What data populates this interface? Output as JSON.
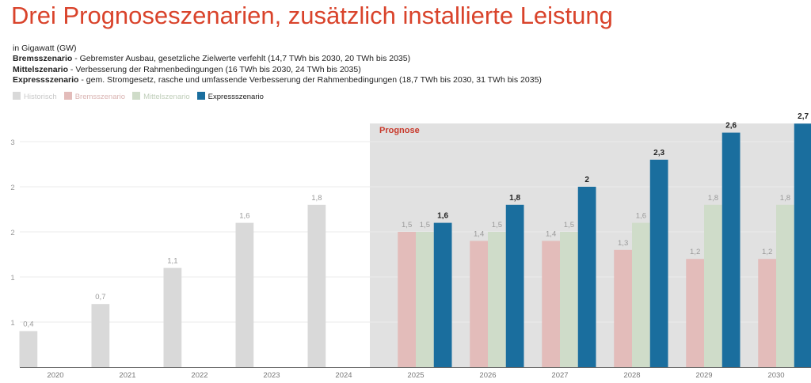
{
  "title": "Drei Prognoseszenarien, zusätzlich installierte Leistung",
  "subtitle": "in Gigawatt (GW)",
  "descriptions": [
    {
      "name": "Bremsszenario",
      "text": " - Gebremster Ausbau, gesetzliche Zielwerte verfehlt (14,7 TWh bis 2030, 20 TWh bis 2035)"
    },
    {
      "name": "Mittelszenario",
      "text": " - Verbesserung der Rahmenbedingungen (16 TWh bis 2030, 24 TWh bis 2035)"
    },
    {
      "name": "Expressszenario",
      "text": " - gem. Stromgesetz, rasche und umfassende Verbesserung der Rahmenbedingungen (18,7 TWh bis 2030, 31 TWh bis 2035)"
    }
  ],
  "chart_data": {
    "type": "bar",
    "categories": [
      "2020",
      "2021",
      "2022",
      "2023",
      "2024",
      "2025",
      "2026",
      "2027",
      "2028",
      "2029",
      "2030"
    ],
    "series": [
      {
        "name": "Historisch",
        "color": "#d9d9d9",
        "values": [
          0.4,
          0.7,
          1.1,
          1.6,
          1.8,
          null,
          null,
          null,
          null,
          null,
          null
        ],
        "labels": [
          "0,4",
          "0,7",
          "1,1",
          "1,6",
          "1,8",
          "",
          "",
          "",
          "",
          "",
          ""
        ]
      },
      {
        "name": "Bremsszenario",
        "color": "#e3bcba",
        "values": [
          null,
          null,
          null,
          null,
          null,
          1.5,
          1.4,
          1.4,
          1.3,
          1.2,
          1.2
        ],
        "labels": [
          "",
          "",
          "",
          "",
          "",
          "1,5",
          "1,4",
          "1,4",
          "1,3",
          "1,2",
          "1,2"
        ]
      },
      {
        "name": "Mittelszenario",
        "color": "#cfdcc9",
        "values": [
          null,
          null,
          null,
          null,
          null,
          1.5,
          1.5,
          1.5,
          1.6,
          1.8,
          1.8
        ],
        "labels": [
          "",
          "",
          "",
          "",
          "",
          "1,5",
          "1,5",
          "1,5",
          "1,6",
          "1,8",
          "1,8"
        ]
      },
      {
        "name": "Expressszenario",
        "color": "#1a6e9e",
        "values": [
          null,
          null,
          null,
          null,
          null,
          1.6,
          1.8,
          2.0,
          2.3,
          2.6,
          2.7
        ],
        "labels": [
          "",
          "",
          "",
          "",
          "",
          "1,6",
          "1,8",
          "2",
          "2,3",
          "2,6",
          "2,7"
        ]
      }
    ],
    "yticks": [
      {
        "value": 0.5,
        "label": "1"
      },
      {
        "value": 1.0,
        "label": "1"
      },
      {
        "value": 1.5,
        "label": "2"
      },
      {
        "value": 2.0,
        "label": "2"
      },
      {
        "value": 2.5,
        "label": "3"
      }
    ],
    "ylim": [
      0,
      2.7
    ],
    "grid": true,
    "legend": "top-left",
    "annotation": {
      "label": "Prognose",
      "from": "2025",
      "color": "#c8392b",
      "shade": "#e1e1e1"
    }
  }
}
